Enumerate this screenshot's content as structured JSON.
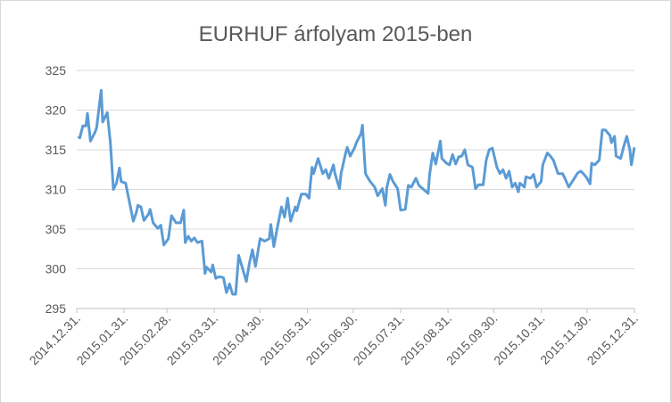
{
  "chart_data": {
    "type": "line",
    "title": "EURHUF árfolyam 2015-ben",
    "x": [
      "2015.01.01.",
      "2015.01.02.",
      "2015.01.04.",
      "2015.01.06.",
      "2015.01.07.",
      "2015.01.09.",
      "2015.01.12.",
      "2015.01.13.",
      "2015.01.16.",
      "2015.01.17.",
      "2015.01.20.",
      "2015.01.22.",
      "2015.01.24.",
      "2015.01.26.",
      "2015.01.28.",
      "2015.01.29.",
      "2015.02.01.",
      "2015.02.03.",
      "2015.02.06.",
      "2015.02.08.",
      "2015.02.09.",
      "2015.02.11.",
      "2015.02.13.",
      "2015.02.16.",
      "2015.02.17.",
      "2015.02.19.",
      "2015.02.22.",
      "2015.02.24.",
      "2015.02.26.",
      "2015.03.01.",
      "2015.03.03.",
      "2015.03.06.",
      "2015.03.09.",
      "2015.03.11.",
      "2015.03.12.",
      "2015.03.14.",
      "2015.03.16.",
      "2015.03.18.",
      "2015.03.20.",
      "2015.03.23.",
      "2015.03.25.",
      "2015.03.26.",
      "2015.03.29.",
      "2015.03.30.",
      "2015.04.01.",
      "2015.04.03.",
      "2015.04.06.",
      "2015.04.08.",
      "2015.04.10.",
      "2015.04.12.",
      "2015.04.14.",
      "2015.04.16.",
      "2015.04.18.",
      "2015.04.21.",
      "2015.04.23.",
      "2015.04.25.",
      "2015.04.27.",
      "2015.04.30.",
      "2015.05.03.",
      "2015.05.06.",
      "2015.05.07.",
      "2015.05.09.",
      "2015.05.11.",
      "2015.05.14.",
      "2015.05.16.",
      "2015.05.18.",
      "2015.05.20.",
      "2015.05.23.",
      "2015.05.24.",
      "2015.05.27.",
      "2015.05.30.",
      "2015.06.01.",
      "2015.06.03.",
      "2015.06.04.",
      "2015.06.07.",
      "2015.06.10.",
      "2015.06.12.",
      "2015.06.14.",
      "2015.06.17.",
      "2015.06.18.",
      "2015.06.21.",
      "2015.06.22.",
      "2015.06.25.",
      "2015.06.26.",
      "2015.06.28.",
      "2015.07.01.",
      "2015.07.02.",
      "2015.07.05.",
      "2015.07.06.",
      "2015.07.08.",
      "2015.07.11.",
      "2015.07.14.",
      "2015.07.16.",
      "2015.07.19.",
      "2015.07.21.",
      "2015.07.22.",
      "2015.07.24.",
      "2015.07.26.",
      "2015.07.29.",
      "2015.07.31.",
      "2015.08.03.",
      "2015.08.05.",
      "2015.08.07.",
      "2015.08.10.",
      "2015.08.12.",
      "2015.08.15.",
      "2015.08.18.",
      "2015.08.19.",
      "2015.08.21.",
      "2015.08.23.",
      "2015.08.26.",
      "2015.08.27.",
      "2015.08.30.",
      "2015.09.01.",
      "2015.09.03.",
      "2015.09.05.",
      "2015.09.07.",
      "2015.09.09.",
      "2015.09.11.",
      "2015.09.13.",
      "2015.09.16.",
      "2015.09.18.",
      "2015.09.20.",
      "2015.09.23.",
      "2015.09.25.",
      "2015.09.27.",
      "2015.09.29.",
      "2015.10.02.",
      "2015.10.04.",
      "2015.10.06.",
      "2015.10.08.",
      "2015.10.10.",
      "2015.10.12.",
      "2015.10.14.",
      "2015.10.16.",
      "2015.10.17.",
      "2015.10.20.",
      "2015.10.21.",
      "2015.10.24.",
      "2015.10.26.",
      "2015.10.28.",
      "2015.10.31.",
      "2015.11.01.",
      "2015.11.04.",
      "2015.11.06.",
      "2015.11.08.",
      "2015.11.11.",
      "2015.11.14.",
      "2015.11.16.",
      "2015.11.18.",
      "2015.11.21.",
      "2015.11.24.",
      "2015.11.26.",
      "2015.11.28.",
      "2015.11.30.",
      "2015.12.02.",
      "2015.12.03.",
      "2015.12.05.",
      "2015.12.08.",
      "2015.12.10.",
      "2015.12.12.",
      "2015.12.15.",
      "2015.12.16.",
      "2015.12.18.",
      "2015.12.19.",
      "2015.12.22.",
      "2015.12.24.",
      "2015.12.26.",
      "2015.12.28.",
      "2015.12.29.",
      "2015.12.31."
    ],
    "series": [
      {
        "color": "#5b9bd5",
        "values": [
          316.7,
          316.5,
          318,
          318,
          319.6,
          316.1,
          317.2,
          317.8,
          322.5,
          318.5,
          319.7,
          315.9,
          310,
          310.8,
          312.7,
          311,
          310.8,
          308.9,
          306,
          307.1,
          308,
          307.8,
          306.1,
          306.9,
          307.5,
          305.8,
          305.1,
          305.5,
          303,
          303.8,
          306.7,
          305.8,
          305.8,
          307.4,
          303.3,
          304.1,
          303.5,
          303.9,
          303.3,
          303.5,
          299.4,
          300.2,
          299.6,
          300.5,
          298.8,
          299,
          298.9,
          297,
          298.1,
          296.8,
          296.8,
          301.7,
          300.4,
          298.4,
          300.7,
          302.4,
          300.3,
          303.8,
          303.5,
          303.8,
          305.6,
          302.8,
          304.9,
          307.8,
          306.5,
          308.9,
          306,
          307.8,
          307.3,
          309.4,
          309.4,
          308.9,
          312.8,
          312,
          313.9,
          312,
          312.5,
          311.4,
          313.1,
          312,
          310.1,
          312,
          314.6,
          315.3,
          314.2,
          315.3,
          315.9,
          317,
          318.1,
          312,
          311,
          310.3,
          309.2,
          310.1,
          308,
          310.3,
          311.9,
          311,
          310.1,
          307.4,
          307.5,
          310.5,
          310.3,
          311.4,
          310.5,
          310,
          309.5,
          311.9,
          314.6,
          313.2,
          316.1,
          313.9,
          313.3,
          313.1,
          314.4,
          313.2,
          314.1,
          314.2,
          315,
          313.1,
          312.8,
          310.1,
          310.6,
          310.6,
          313.7,
          315,
          315.2,
          312.8,
          312,
          312.5,
          311.4,
          312.3,
          310.3,
          310.8,
          309.7,
          310.8,
          310.3,
          311.6,
          311.4,
          311.9,
          310.3,
          311,
          313.1,
          314.6,
          314.2,
          313.7,
          312,
          312,
          311.2,
          310.3,
          311.2,
          312.1,
          312.3,
          311.9,
          311.4,
          310.7,
          313.3,
          313.1,
          313.7,
          317.5,
          317.5,
          316.8,
          315.9,
          316.7,
          314.2,
          313.9,
          315.4,
          316.7,
          315,
          313.1,
          315.3
        ]
      }
    ],
    "xlim": [
      "2014.12.31.",
      "2015.12.31."
    ],
    "xticks": [
      "2014.12.31.",
      "2015.01.31.",
      "2015.02.28.",
      "2015.03.31.",
      "2015.04.30.",
      "2015.05.31.",
      "2015.06.30.",
      "2015.07.31.",
      "2015.08.31.",
      "2015.09.30.",
      "2015.10.31.",
      "2015.11.30.",
      "2015.12.31."
    ],
    "ylim": [
      295,
      325
    ],
    "yticks": [
      295,
      300,
      305,
      310,
      315,
      320,
      325
    ],
    "grid": true
  }
}
